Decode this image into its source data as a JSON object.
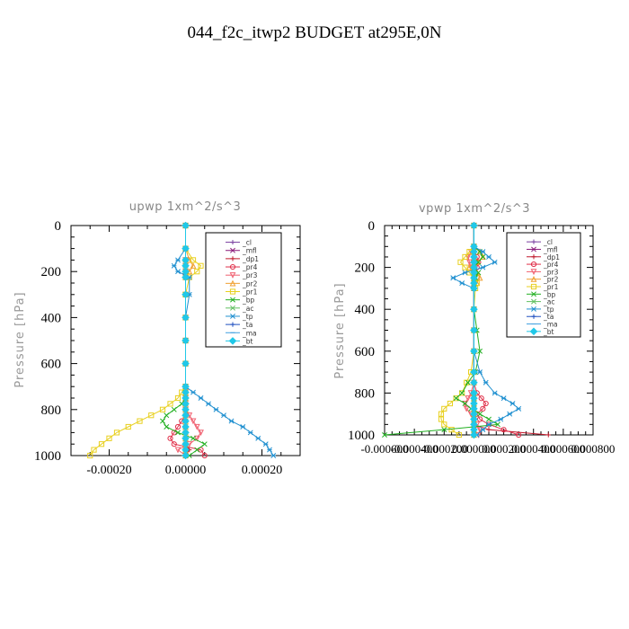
{
  "figure": {
    "title": "044_f2c_itwp2  BUDGET at295E,0N"
  },
  "chart_data": [
    {
      "type": "line",
      "subtitle": "upwp   1xm^2/s^3",
      "ylabel": "Pressure [hPa]",
      "xlabel": "",
      "xlim": [
        -0.0003,
        0.0003
      ],
      "ylim": [
        1000,
        0
      ],
      "xticks": [
        -0.0002,
        0.0,
        0.0002
      ],
      "xtick_labels": [
        "-0.00020",
        "0.00000",
        "0.00020"
      ],
      "yticks": [
        0,
        200,
        400,
        600,
        800,
        1000
      ],
      "ytick_labels": [
        "0",
        "200",
        "400",
        "600",
        "800",
        "1000"
      ],
      "legend_position": "top-right",
      "grid": false,
      "pressure_levels": [
        0,
        100,
        150,
        175,
        200,
        225,
        300,
        400,
        500,
        600,
        700,
        725,
        750,
        775,
        800,
        825,
        850,
        875,
        900,
        925,
        950,
        975,
        1000
      ],
      "series": [
        {
          "name": "_cl",
          "color": "#7a3fa0",
          "marker": "+",
          "values": [
            0,
            0,
            0,
            0,
            0,
            0,
            0,
            0,
            0,
            0,
            0,
            0,
            0,
            0,
            0,
            0,
            0,
            0,
            0,
            0,
            0,
            0,
            0
          ]
        },
        {
          "name": "_mfl",
          "color": "#8a1a7a",
          "marker": "x",
          "values": [
            0,
            0,
            0,
            0,
            0,
            0,
            0,
            0,
            0,
            0,
            0,
            0,
            0,
            0,
            0,
            0,
            0,
            0,
            0,
            0,
            0,
            0,
            0
          ]
        },
        {
          "name": "_dp1",
          "color": "#c0182a",
          "marker": "+",
          "values": [
            0,
            0,
            0,
            0,
            0,
            0,
            0,
            0,
            0,
            0,
            0,
            0,
            0,
            0,
            0,
            0,
            0,
            0,
            0,
            0,
            0,
            1e-05,
            0
          ]
        },
        {
          "name": "_pr4",
          "color": "#e0304a",
          "marker": "o",
          "values": [
            0,
            0,
            0,
            0,
            0,
            0,
            0,
            0,
            0,
            0,
            0,
            0,
            0,
            0,
            0,
            0,
            -1e-05,
            -2e-05,
            -3e-05,
            -4e-05,
            -3e-05,
            4e-05,
            5e-05
          ]
        },
        {
          "name": "_pr3",
          "color": "#f06070",
          "marker": "v",
          "values": [
            0,
            0,
            0,
            0,
            0,
            0,
            0,
            0,
            0,
            0,
            0,
            0,
            0,
            0,
            0,
            1e-05,
            2e-05,
            3e-05,
            4e-05,
            3e-05,
            1e-05,
            -2e-05,
            0
          ]
        },
        {
          "name": "_pr2",
          "color": "#f0a030",
          "marker": "^",
          "values": [
            0,
            0,
            1e-05,
            2e-05,
            1e-05,
            0,
            0,
            0,
            0,
            0,
            0,
            0,
            0,
            0,
            0,
            0,
            0,
            0,
            0,
            0,
            0,
            0,
            0
          ]
        },
        {
          "name": "_pr1",
          "color": "#e8d020",
          "marker": "s",
          "values": [
            0,
            0,
            2e-05,
            4e-05,
            3e-05,
            1e-05,
            0,
            0,
            0,
            0,
            0,
            -1e-05,
            -2e-05,
            -4e-05,
            -6e-05,
            -9e-05,
            -0.00012,
            -0.00015,
            -0.00018,
            -0.0002,
            -0.00022,
            -0.00024,
            -0.00025
          ]
        },
        {
          "name": "_bp",
          "color": "#22b022",
          "marker": "x",
          "values": [
            0,
            0,
            0,
            0,
            0,
            0,
            0,
            0,
            0,
            0,
            0,
            0,
            0,
            -1e-05,
            -3e-05,
            -5e-05,
            -6e-05,
            -5e-05,
            -2e-05,
            2e-05,
            5e-05,
            3e-05,
            1e-05
          ]
        },
        {
          "name": "_ac",
          "color": "#60c060",
          "marker": "x",
          "values": [
            0,
            0,
            0,
            0,
            0,
            0,
            0,
            0,
            0,
            0,
            0,
            0,
            0,
            0,
            0,
            0,
            0,
            0,
            0,
            0,
            0,
            0,
            0
          ]
        },
        {
          "name": "_tp",
          "color": "#2090d0",
          "marker": "*",
          "values": [
            0,
            0,
            -2e-05,
            -3e-05,
            -2e-05,
            1e-05,
            1e-05,
            0,
            0,
            0,
            0,
            2e-05,
            4e-05,
            6e-05,
            8e-05,
            0.0001,
            0.00012,
            0.00015,
            0.00017,
            0.00019,
            0.00021,
            0.00022,
            0.00023
          ]
        },
        {
          "name": "_ta",
          "color": "#2050c0",
          "marker": "+",
          "values": [
            0,
            0,
            0,
            0,
            0,
            0,
            0,
            0,
            0,
            0,
            0,
            0,
            0,
            0,
            0,
            0,
            0,
            0,
            0,
            0,
            0,
            0,
            0
          ]
        },
        {
          "name": "_ma",
          "color": "#40a0e0",
          "marker": "-",
          "values": [
            0,
            0,
            0,
            0,
            0,
            0,
            0,
            0,
            0,
            0,
            0,
            0,
            0,
            0,
            0,
            0,
            0,
            0,
            0,
            0,
            0,
            0,
            0
          ]
        },
        {
          "name": "_bt",
          "color": "#20c8e8",
          "marker": "D",
          "values": [
            0,
            0,
            0,
            0,
            0,
            0,
            0,
            0,
            0,
            0,
            0,
            0,
            0,
            0,
            0,
            0,
            0,
            0,
            0,
            0,
            0,
            0,
            0
          ]
        }
      ]
    },
    {
      "type": "line",
      "subtitle": "vpwp   1xm^2/s^3",
      "ylabel": "Pressure [hPa]",
      "xlabel": "",
      "xlim": [
        -0.0006,
        0.0008
      ],
      "ylim": [
        1000,
        0
      ],
      "xticks": [
        -0.0006,
        -0.0004,
        -0.0002,
        0.0,
        0.0002,
        0.0004,
        0.0006,
        0.0008
      ],
      "xtick_labels": [
        "-0.000600",
        "-0.000400",
        "-0.000200",
        "0.000000",
        "0.000200",
        "0.000400",
        "0.000600",
        "0.000800"
      ],
      "yticks": [
        0,
        200,
        400,
        600,
        800,
        1000
      ],
      "ytick_labels": [
        "0",
        "200",
        "400",
        "600",
        "800",
        "1000"
      ],
      "legend_position": "top-right",
      "grid": false,
      "pressure_levels": [
        0,
        100,
        125,
        150,
        175,
        200,
        225,
        250,
        275,
        300,
        400,
        500,
        600,
        700,
        750,
        800,
        825,
        850,
        875,
        900,
        925,
        950,
        975,
        1000
      ],
      "series": [
        {
          "name": "_cl",
          "color": "#7a3fa0",
          "marker": "+",
          "values": [
            0,
            0,
            0,
            0,
            0,
            0,
            0,
            0,
            0,
            0,
            0,
            0,
            0,
            0,
            0,
            0,
            0,
            0,
            0,
            0,
            0,
            0,
            0,
            0
          ]
        },
        {
          "name": "_mfl",
          "color": "#8a1a7a",
          "marker": "x",
          "values": [
            0,
            0,
            0,
            0,
            0,
            0,
            0,
            0,
            0,
            0,
            0,
            0,
            0,
            0,
            0,
            0,
            0,
            0,
            0,
            0,
            0,
            0,
            0,
            0
          ]
        },
        {
          "name": "_dp1",
          "color": "#c0182a",
          "marker": "+",
          "values": [
            0,
            0,
            0,
            0,
            0,
            0,
            0,
            0,
            0,
            0,
            0,
            0,
            0,
            0,
            0,
            0,
            0,
            0,
            0,
            0,
            0,
            0,
            0.0001,
            0.0005
          ]
        },
        {
          "name": "_pr4",
          "color": "#e0304a",
          "marker": "o",
          "values": [
            0,
            0,
            0,
            2e-05,
            3e-05,
            2e-05,
            1e-05,
            0,
            0,
            0,
            0,
            0,
            0,
            0,
            0,
            2e-05,
            5e-05,
            8e-05,
            6e-05,
            2e-05,
            4e-05,
            0.0001,
            0.0002,
            0.0003
          ]
        },
        {
          "name": "_pr3",
          "color": "#f06070",
          "marker": "v",
          "values": [
            0,
            0,
            -2e-05,
            -4e-05,
            -3e-05,
            -2e-05,
            0,
            0,
            0,
            0,
            0,
            0,
            0,
            0,
            0,
            -2e-05,
            -4e-05,
            -6e-05,
            -5e-05,
            -2e-05,
            0,
            2e-05,
            4e-05,
            3e-05
          ]
        },
        {
          "name": "_pr2",
          "color": "#f0a030",
          "marker": "^",
          "values": [
            0,
            0,
            4e-05,
            6e-05,
            2e-05,
            -3e-05,
            2e-05,
            4e-05,
            2e-05,
            0,
            0,
            0,
            0,
            0,
            0,
            0,
            0,
            0,
            0,
            0,
            0,
            0,
            0,
            0
          ]
        },
        {
          "name": "_pr1",
          "color": "#e8d020",
          "marker": "s",
          "values": [
            0,
            0,
            -3e-05,
            -6e-05,
            -9e-05,
            -6e-05,
            -3e-05,
            0,
            2e-05,
            1e-05,
            0,
            0,
            0,
            -2e-05,
            -5e-05,
            -8e-05,
            -0.00012,
            -0.00016,
            -0.0002,
            -0.00022,
            -0.00022,
            -0.0002,
            -0.00015,
            -0.0001
          ]
        },
        {
          "name": "_bp",
          "color": "#22b022",
          "marker": "x",
          "values": [
            0,
            0,
            4e-05,
            6e-05,
            3e-05,
            0,
            3e-05,
            1e-05,
            0,
            0,
            0,
            2e-05,
            4e-05,
            1e-05,
            -4e-05,
            -8e-05,
            -0.00012,
            -6e-05,
            -2e-05,
            4e-05,
            0.0001,
            0.00016,
            -0.0002,
            -0.0006
          ]
        },
        {
          "name": "_ac",
          "color": "#60c060",
          "marker": "x",
          "values": [
            0,
            0,
            0,
            0,
            0,
            0,
            0,
            0,
            0,
            0,
            0,
            0,
            0,
            0,
            0,
            0,
            0,
            0,
            0,
            0,
            0,
            0,
            0,
            0
          ]
        },
        {
          "name": "_tp",
          "color": "#2090d0",
          "marker": "*",
          "values": [
            0,
            0,
            6e-05,
            0.0001,
            0.00014,
            6e-05,
            -6e-05,
            -0.00014,
            -8e-05,
            0,
            0,
            0,
            0,
            4e-05,
            8e-05,
            0.00014,
            0.0002,
            0.00026,
            0.0003,
            0.00024,
            0.00018,
            0.0001,
            6e-05,
            2e-05
          ]
        },
        {
          "name": "_ta",
          "color": "#2050c0",
          "marker": "+",
          "values": [
            0,
            0,
            0,
            0,
            0,
            0,
            0,
            0,
            0,
            0,
            0,
            0,
            0,
            0,
            0,
            0,
            0,
            0,
            0,
            0,
            0,
            0,
            0,
            0
          ]
        },
        {
          "name": "_ma",
          "color": "#40a0e0",
          "marker": "-",
          "values": [
            0,
            0,
            0,
            0,
            0,
            0,
            0,
            0,
            0,
            0,
            0,
            0,
            0,
            0,
            0,
            0,
            0,
            0,
            0,
            0,
            0,
            0,
            0,
            0
          ]
        },
        {
          "name": "_bt",
          "color": "#20c8e8",
          "marker": "D",
          "values": [
            0,
            0,
            0,
            0,
            0,
            0,
            0,
            0,
            0,
            0,
            0,
            0,
            0,
            0,
            0,
            0,
            0,
            0,
            0,
            0,
            0,
            0,
            0,
            0
          ]
        }
      ]
    }
  ]
}
